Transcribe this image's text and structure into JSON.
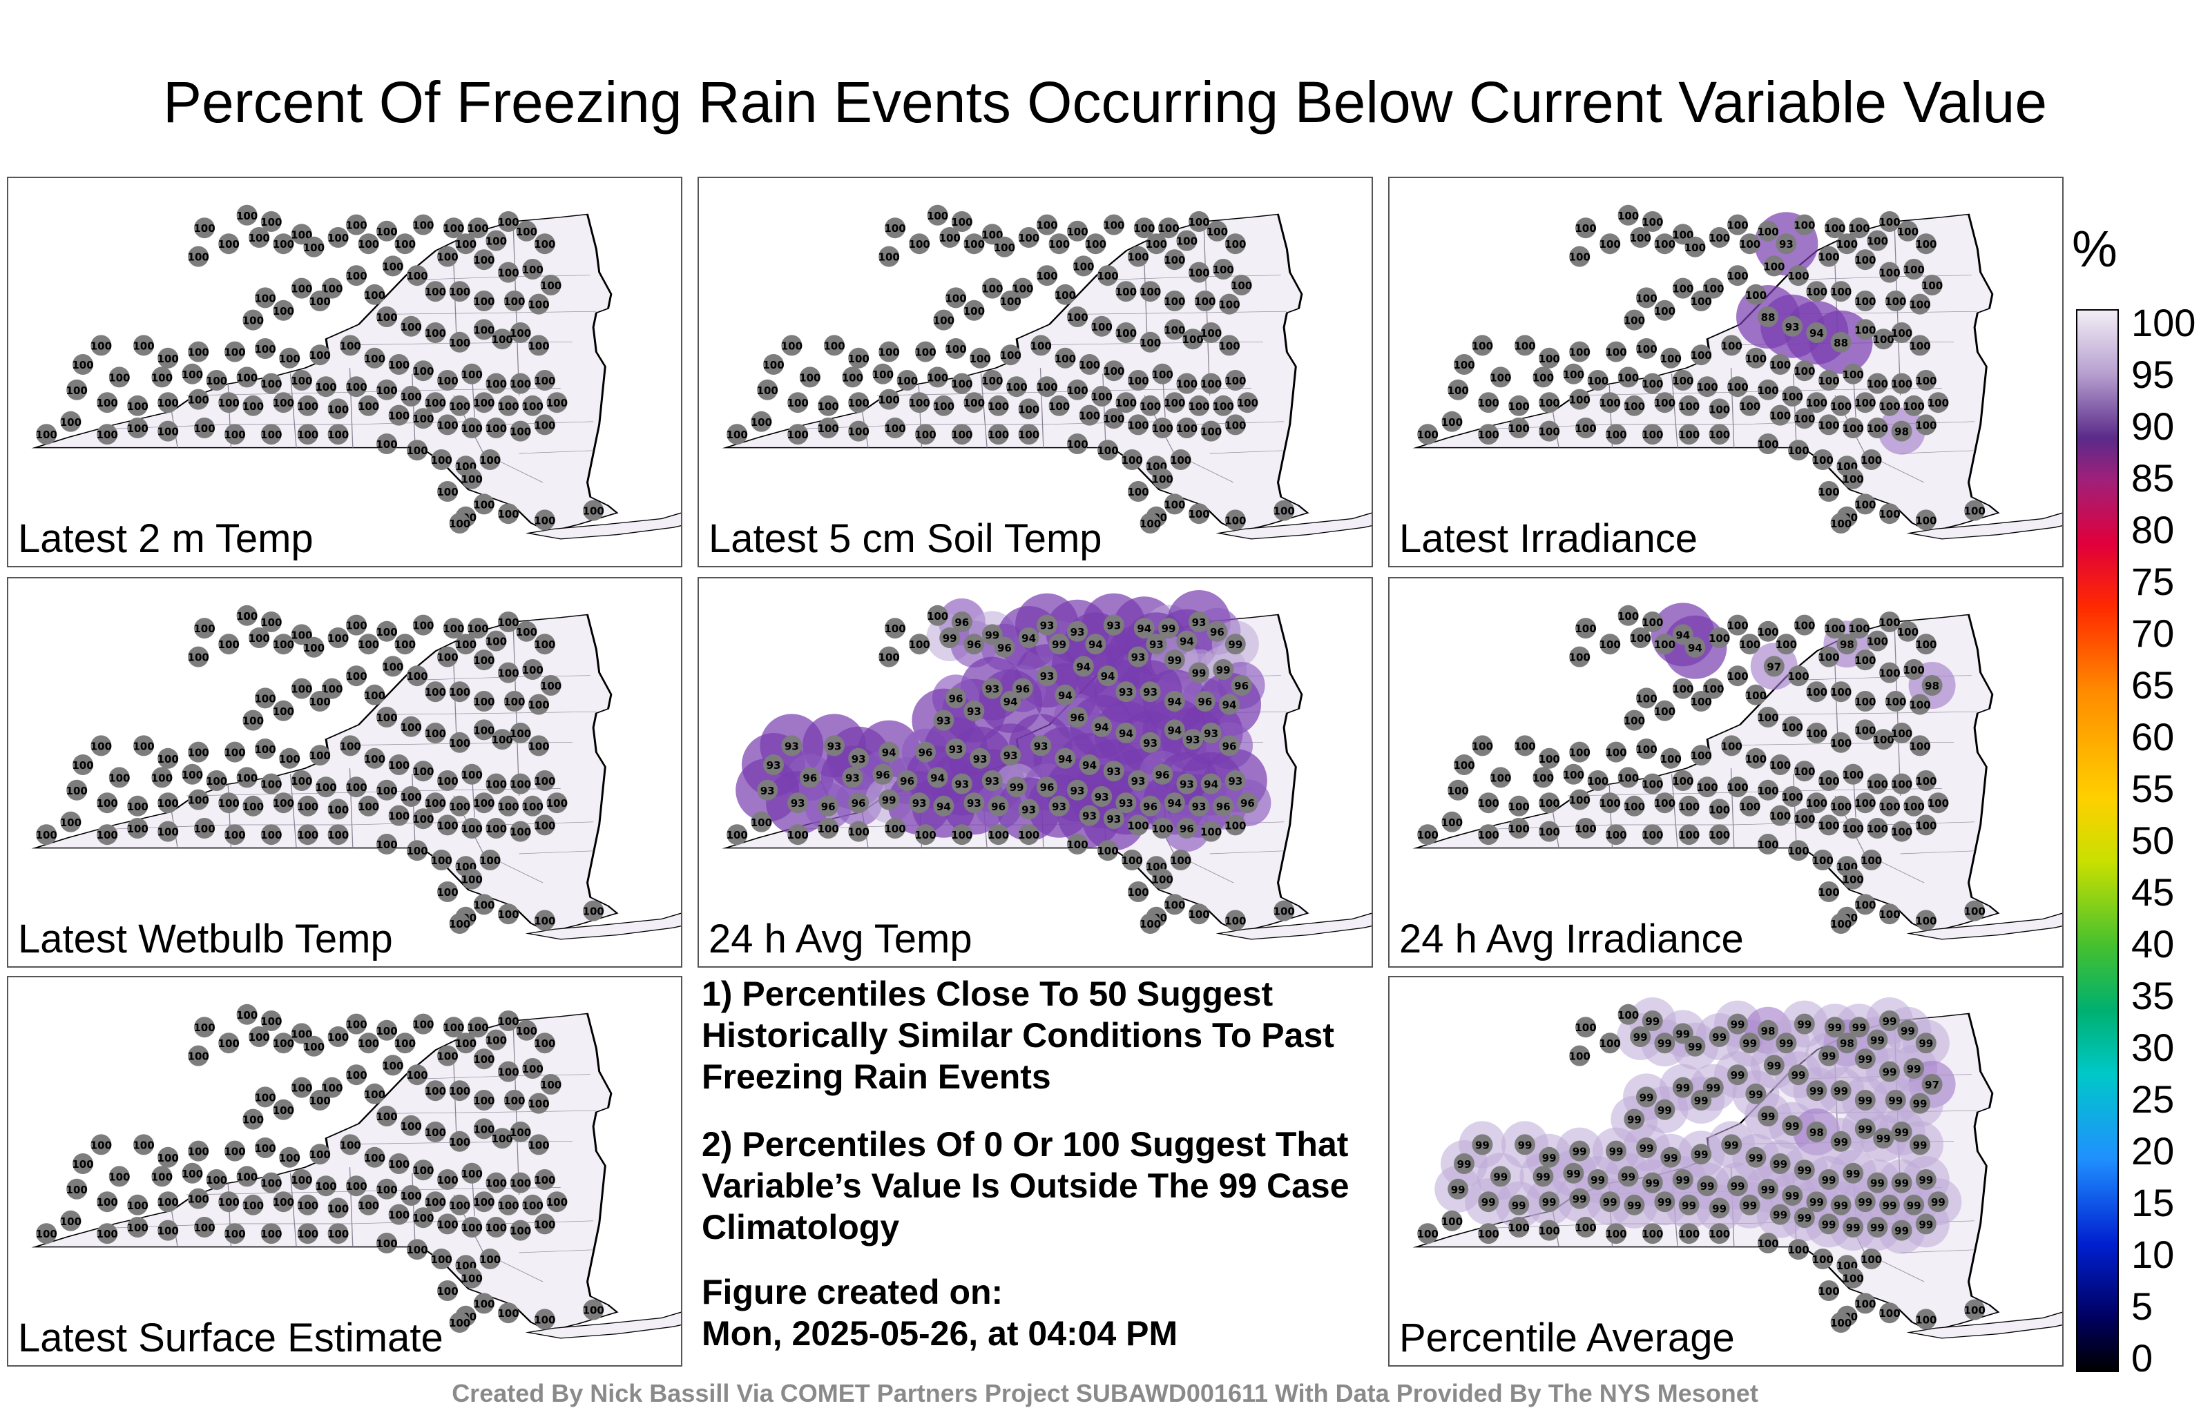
{
  "title": "Percent Of Freezing Rain Events Occurring Below Current Variable Value",
  "panels": [
    {
      "label": "Latest 2 m Temp",
      "values": [
        100,
        100,
        100,
        100,
        100,
        100,
        100,
        100,
        100,
        100,
        100,
        100,
        100,
        100,
        100,
        100,
        100,
        100,
        100,
        100,
        100,
        100,
        100,
        100,
        100,
        100,
        100,
        100,
        100,
        100,
        100,
        100,
        100,
        100,
        100,
        100,
        100,
        100,
        100,
        100,
        100,
        100,
        100,
        100,
        100,
        100,
        100,
        100,
        100,
        100,
        100,
        100,
        100,
        100,
        100,
        100,
        100,
        100,
        100,
        100,
        100,
        100,
        100,
        100,
        100,
        100,
        100,
        100,
        100,
        100,
        100,
        100,
        100,
        100,
        100,
        100,
        100,
        100,
        100,
        100,
        100,
        100,
        100,
        100,
        100,
        100,
        100,
        100,
        100,
        100,
        100,
        100,
        100,
        100,
        100,
        100,
        100,
        100,
        100,
        100,
        100,
        100,
        100,
        100,
        100,
        100,
        100,
        100,
        100,
        100,
        100,
        100,
        100,
        100,
        100,
        100,
        100,
        100,
        100,
        100,
        100,
        100,
        100,
        100,
        100,
        100
      ]
    },
    {
      "label": "Latest 5 cm Soil Temp",
      "values": [
        100,
        100,
        100,
        100,
        100,
        100,
        100,
        100,
        100,
        100,
        100,
        100,
        100,
        100,
        100,
        100,
        100,
        100,
        100,
        100,
        100,
        100,
        100,
        100,
        100,
        100,
        100,
        100,
        100,
        100,
        100,
        100,
        100,
        100,
        100,
        100,
        100,
        100,
        100,
        100,
        100,
        100,
        100,
        100,
        100,
        100,
        100,
        100,
        100,
        100,
        100,
        100,
        100,
        100,
        100,
        100,
        100,
        100,
        100,
        100,
        100,
        100,
        100,
        100,
        100,
        100,
        100,
        100,
        100,
        100,
        100,
        100,
        100,
        100,
        100,
        100,
        100,
        100,
        100,
        100,
        100,
        100,
        100,
        100,
        100,
        100,
        100,
        100,
        100,
        100,
        100,
        100,
        100,
        100,
        100,
        100,
        100,
        100,
        100,
        100,
        100,
        100,
        100,
        100,
        100,
        100,
        100,
        100,
        100,
        100,
        100,
        100,
        100,
        100,
        100,
        100,
        100,
        100,
        100,
        100,
        100,
        100,
        100,
        100,
        100,
        100
      ]
    },
    {
      "label": "Latest Irradiance",
      "values": [
        100,
        100,
        100,
        100,
        100,
        100,
        100,
        100,
        100,
        100,
        100,
        100,
        100,
        93,
        100,
        100,
        100,
        100,
        100,
        100,
        100,
        100,
        100,
        100,
        100,
        100,
        100,
        100,
        100,
        100,
        100,
        100,
        100,
        100,
        100,
        100,
        100,
        100,
        100,
        100,
        100,
        100,
        88,
        93,
        94,
        88,
        100,
        100,
        100,
        100,
        100,
        100,
        100,
        100,
        100,
        100,
        100,
        100,
        100,
        100,
        100,
        100,
        100,
        100,
        100,
        100,
        100,
        100,
        100,
        100,
        100,
        100,
        100,
        100,
        100,
        100,
        100,
        100,
        100,
        100,
        100,
        100,
        100,
        100,
        100,
        100,
        100,
        100,
        100,
        100,
        100,
        100,
        100,
        100,
        100,
        100,
        100,
        100,
        100,
        100,
        100,
        98,
        100,
        100,
        100,
        100,
        100,
        100,
        100,
        100,
        100,
        100,
        100,
        100,
        100,
        100,
        100,
        100,
        100,
        100,
        100,
        100,
        100,
        100,
        100,
        100
      ]
    },
    {
      "label": "Latest Wetbulb Temp",
      "values": [
        100,
        100,
        100,
        100,
        100,
        100,
        100,
        100,
        100,
        100,
        100,
        100,
        100,
        100,
        100,
        100,
        100,
        100,
        100,
        100,
        100,
        100,
        100,
        100,
        100,
        100,
        100,
        100,
        100,
        100,
        100,
        100,
        100,
        100,
        100,
        100,
        100,
        100,
        100,
        100,
        100,
        100,
        100,
        100,
        100,
        100,
        100,
        100,
        100,
        100,
        100,
        100,
        100,
        100,
        100,
        100,
        100,
        100,
        100,
        100,
        100,
        100,
        100,
        100,
        100,
        100,
        100,
        100,
        100,
        100,
        100,
        100,
        100,
        100,
        100,
        100,
        100,
        100,
        100,
        100,
        100,
        100,
        100,
        100,
        100,
        100,
        100,
        100,
        100,
        100,
        100,
        100,
        100,
        100,
        100,
        100,
        100,
        100,
        100,
        100,
        100,
        100,
        100,
        100,
        100,
        100,
        100,
        100,
        100,
        100,
        100,
        100,
        100,
        100,
        100,
        100,
        100,
        100,
        100,
        100,
        100,
        100,
        100,
        100,
        100,
        100
      ]
    },
    {
      "label": "24 h Avg Temp",
      "values": [
        100,
        100,
        100,
        100,
        96,
        99,
        96,
        99,
        96,
        94,
        93,
        99,
        93,
        94,
        93,
        94,
        99,
        93,
        94,
        93,
        96,
        99,
        93,
        99,
        99,
        99,
        96,
        94,
        94,
        93,
        93,
        94,
        96,
        94,
        94,
        93,
        96,
        94,
        93,
        93,
        96,
        93,
        96,
        94,
        94,
        93,
        94,
        93,
        93,
        96,
        93,
        93,
        93,
        94,
        96,
        93,
        93,
        93,
        93,
        94,
        94,
        93,
        93,
        96,
        93,
        94,
        93,
        93,
        96,
        93,
        96,
        96,
        94,
        93,
        93,
        99,
        96,
        93,
        93,
        93,
        96,
        94,
        93,
        96,
        96,
        93,
        93,
        96,
        96,
        99,
        93,
        94,
        93,
        96,
        93,
        93,
        93,
        93,
        100,
        100,
        96,
        100,
        100,
        100,
        100,
        100,
        100,
        100,
        100,
        100,
        100,
        100,
        100,
        100,
        100,
        100,
        100,
        100,
        100,
        100,
        100,
        100,
        100,
        100,
        100,
        100
      ]
    },
    {
      "label": "24 h Avg Irradiance",
      "values": [
        100,
        100,
        100,
        100,
        100,
        100,
        100,
        94,
        94,
        100,
        100,
        100,
        100,
        100,
        100,
        100,
        100,
        98,
        100,
        100,
        100,
        100,
        100,
        100,
        100,
        100,
        98,
        97,
        100,
        100,
        100,
        100,
        100,
        100,
        100,
        100,
        100,
        100,
        100,
        100,
        100,
        100,
        100,
        100,
        100,
        100,
        100,
        100,
        100,
        100,
        100,
        100,
        100,
        100,
        100,
        100,
        100,
        100,
        100,
        100,
        100,
        100,
        100,
        100,
        100,
        100,
        100,
        100,
        100,
        100,
        100,
        100,
        100,
        100,
        100,
        100,
        100,
        100,
        100,
        100,
        100,
        100,
        100,
        100,
        100,
        100,
        100,
        100,
        100,
        100,
        100,
        100,
        100,
        100,
        100,
        100,
        100,
        100,
        100,
        100,
        100,
        100,
        100,
        100,
        100,
        100,
        100,
        100,
        100,
        100,
        100,
        100,
        100,
        100,
        100,
        100,
        100,
        100,
        100,
        100,
        100,
        100,
        100,
        100,
        100,
        100
      ]
    },
    {
      "label": "Latest Surface Estimate",
      "values": [
        100,
        100,
        100,
        100,
        100,
        100,
        100,
        100,
        100,
        100,
        100,
        100,
        100,
        100,
        100,
        100,
        100,
        100,
        100,
        100,
        100,
        100,
        100,
        100,
        100,
        100,
        100,
        100,
        100,
        100,
        100,
        100,
        100,
        100,
        100,
        100,
        100,
        100,
        100,
        100,
        100,
        100,
        100,
        100,
        100,
        100,
        100,
        100,
        100,
        100,
        100,
        100,
        100,
        100,
        100,
        100,
        100,
        100,
        100,
        100,
        100,
        100,
        100,
        100,
        100,
        100,
        100,
        100,
        100,
        100,
        100,
        100,
        100,
        100,
        100,
        100,
        100,
        100,
        100,
        100,
        100,
        100,
        100,
        100,
        100,
        100,
        100,
        100,
        100,
        100,
        100,
        100,
        100,
        100,
        100,
        100,
        100,
        100,
        100,
        100,
        100,
        100,
        100,
        100,
        100,
        100,
        100,
        100,
        100,
        100,
        100,
        100,
        100,
        100,
        100,
        100,
        100,
        100,
        100,
        100,
        100,
        100,
        100,
        100,
        100,
        100
      ]
    },
    {
      "label": "Percentile Average",
      "values": [
        100,
        100,
        100,
        100,
        99,
        99,
        99,
        99,
        99,
        99,
        99,
        99,
        98,
        99,
        99,
        99,
        99,
        98,
        99,
        99,
        99,
        99,
        99,
        99,
        99,
        99,
        97,
        99,
        99,
        99,
        99,
        99,
        99,
        99,
        99,
        99,
        99,
        99,
        99,
        99,
        99,
        99,
        99,
        99,
        98,
        99,
        99,
        99,
        99,
        99,
        99,
        99,
        99,
        99,
        99,
        99,
        99,
        99,
        99,
        99,
        99,
        99,
        99,
        99,
        99,
        99,
        99,
        99,
        99,
        99,
        99,
        99,
        99,
        99,
        99,
        99,
        99,
        99,
        99,
        99,
        99,
        99,
        99,
        99,
        99,
        99,
        99,
        99,
        99,
        99,
        99,
        99,
        99,
        99,
        99,
        99,
        99,
        99,
        99,
        99,
        99,
        99,
        99,
        100,
        100,
        100,
        100,
        100,
        100,
        100,
        100,
        100,
        100,
        100,
        100,
        100,
        100,
        100,
        100,
        100,
        100,
        100,
        100,
        100,
        100,
        100
      ]
    }
  ],
  "notes": {
    "note1": "1) Percentiles Close To 50 Suggest Historically Similar Conditions To Past Freezing Rain Events",
    "note2": "2) Percentiles Of 0 Or 100 Suggest That Variable’s Value Is Outside The 99 Case Climatology",
    "created_label": "Figure created on:",
    "created_value": "Mon, 2025-05-26, at 04:04 PM"
  },
  "footer": "Created By Nick Bassill Via COMET Partners Project SUBAWD001611 With Data Provided By The NYS Mesonet",
  "colorbar": {
    "unit": "%",
    "ticks": [
      "100",
      "95",
      "90",
      "85",
      "80",
      "75",
      "70",
      "65",
      "60",
      "55",
      "50",
      "45",
      "40",
      "35",
      "30",
      "25",
      "20",
      "15",
      "10",
      "5",
      "0"
    ]
  }
}
